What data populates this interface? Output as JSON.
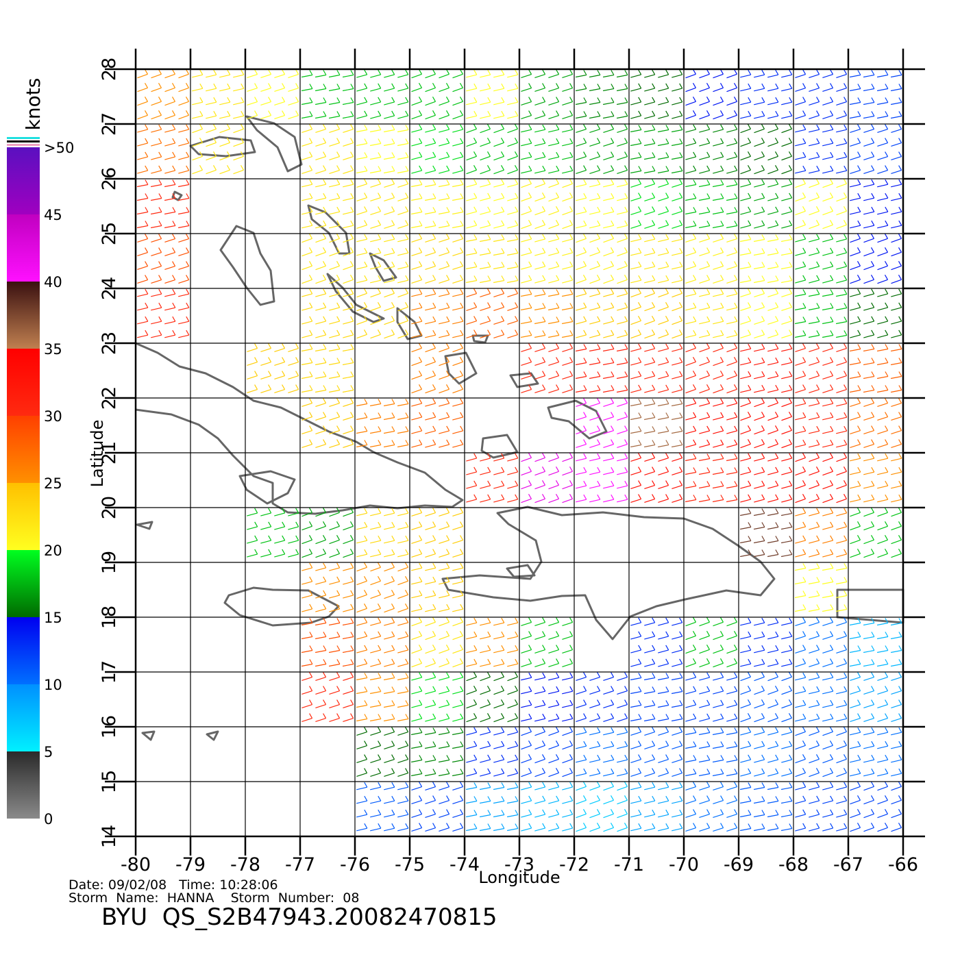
{
  "chart_data": {
    "type": "wind-map",
    "x_label": "Longitude",
    "y_label": "Latitude",
    "xlim": [
      -80,
      -66
    ],
    "ylim": [
      14,
      28
    ],
    "xticks": [
      -80,
      -79,
      -78,
      -77,
      -76,
      -75,
      -74,
      -73,
      -72,
      -71,
      -70,
      -69,
      -68,
      -67,
      -66
    ],
    "yticks": [
      14,
      15,
      16,
      17,
      18,
      19,
      20,
      21,
      22,
      23,
      24,
      25,
      26,
      27,
      28
    ],
    "grid": true,
    "wind": {
      "lon": [
        -79.5,
        -78.5,
        -77.5,
        -76.5,
        -75.5,
        -74.5,
        -73.5,
        -72.5,
        -71.5,
        -70.5,
        -69.5,
        -68.5,
        -67.5,
        -66.5
      ],
      "lat": [
        27.5,
        26.5,
        25.5,
        24.5,
        23.5,
        22.5,
        21.5,
        20.5,
        19.5,
        18.5,
        17.5,
        16.5,
        15.5,
        14.5
      ],
      "speed": [
        [
          25,
          22,
          20,
          18,
          18,
          18,
          20,
          17,
          16,
          15,
          14,
          13,
          13,
          12
        ],
        [
          27,
          22,
          null,
          22,
          20,
          19,
          18,
          18,
          17,
          17,
          16,
          15,
          13,
          12
        ],
        [
          30,
          null,
          null,
          22,
          22,
          21,
          20,
          21,
          20,
          19,
          18,
          17,
          20,
          14
        ],
        [
          29,
          null,
          null,
          22,
          22,
          23,
          22,
          21,
          21,
          22,
          21,
          20,
          18,
          14
        ],
        [
          30,
          null,
          null,
          23,
          23,
          26,
          28,
          25,
          24,
          24,
          22,
          20,
          18,
          15
        ],
        [
          null,
          null,
          24,
          23,
          null,
          26,
          null,
          30,
          31,
          30,
          30,
          32,
          30,
          28
        ],
        [
          null,
          null,
          null,
          24,
          26,
          28,
          null,
          null,
          40,
          36,
          33,
          33,
          30,
          27
        ],
        [
          null,
          null,
          null,
          null,
          null,
          null,
          30,
          42,
          40,
          33,
          30,
          33,
          33,
          25
        ],
        [
          null,
          null,
          18,
          17,
          23,
          24,
          null,
          null,
          null,
          null,
          null,
          38,
          26,
          18
        ],
        [
          null,
          null,
          null,
          25,
          25,
          24,
          null,
          null,
          null,
          null,
          null,
          null,
          20,
          null
        ],
        [
          null,
          null,
          null,
          29,
          26,
          22,
          25,
          18,
          null,
          13,
          18,
          13,
          10,
          8
        ],
        [
          null,
          null,
          null,
          30,
          25,
          19,
          15,
          14,
          13,
          12,
          12,
          11,
          10,
          9
        ],
        [
          null,
          null,
          null,
          null,
          15,
          16,
          13,
          12,
          10,
          11,
          11,
          10,
          11,
          10
        ],
        [
          null,
          null,
          null,
          null,
          11,
          12,
          9,
          8,
          7,
          9,
          10,
          11,
          12,
          12
        ]
      ]
    },
    "colorbar": {
      "title": "knots",
      "lim": [
        0,
        50
      ],
      "ticks": [
        0,
        5,
        10,
        15,
        20,
        25,
        30,
        35,
        40,
        45,
        {
          "value": 50,
          "label": ">50"
        }
      ],
      "colors": [
        [
          "#8a8a8a",
          "#2a2a2a"
        ],
        [
          "#00f0ff",
          "#0090ff"
        ],
        [
          "#0070ff",
          "#0000f0"
        ],
        [
          "#006a00",
          "#00ff20"
        ],
        [
          "#ffff20",
          "#ffc000"
        ],
        [
          "#ff9000",
          "#ff4000"
        ],
        [
          "#ff2a10",
          "#ff0000"
        ],
        [
          "#c08050",
          "#3a1010"
        ],
        [
          "#ff10ff",
          "#c000c0"
        ],
        [
          "#a000c0",
          "#5a10c0"
        ]
      ]
    },
    "footer": {
      "line1": "Date: 09/02/08   Time: 10:28:06",
      "line2": "Storm  Name:  HANNA    Storm  Number:  08",
      "title": "BYU  QS_S2B47943.20082470815"
    }
  }
}
